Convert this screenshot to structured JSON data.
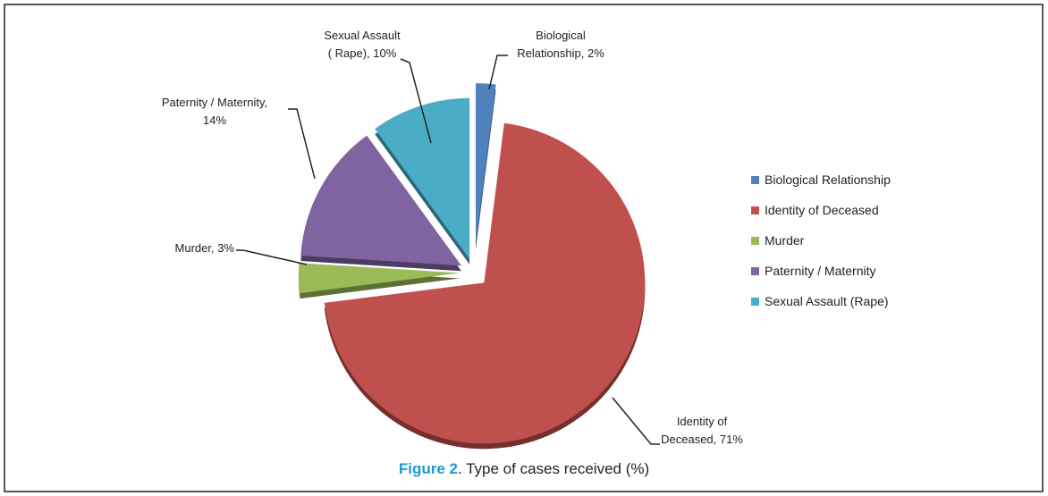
{
  "chart_data": {
    "type": "pie",
    "categories": [
      "Biological Relationship",
      "Identity of Deceased",
      "Murder",
      "Paternity / Maternity",
      "Sexual Assault (Rape)"
    ],
    "values": [
      2,
      71,
      3,
      14,
      10
    ],
    "value_labels": [
      "Biological\nRelationship, 2%",
      "Identity of\nDeceased, 71%",
      "Murder, 3%",
      "Paternity / Maternity,\n14%",
      "Sexual Assault\n( Rape), 10%"
    ],
    "colors": [
      "#4f81bd",
      "#c0504d",
      "#9bbb59",
      "#8064a2",
      "#4bacc6"
    ],
    "legend": "right",
    "caption_label": "Figure 2",
    "caption": ". Type of cases received (%)"
  }
}
